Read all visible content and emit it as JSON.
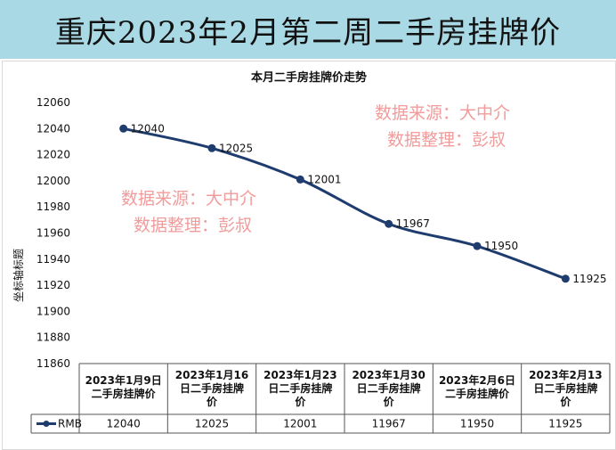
{
  "header": {
    "title": "重庆2023年2月第二周二手房挂牌价"
  },
  "chart_data": {
    "type": "line",
    "title": "本月二手房挂牌价走势",
    "xlabel": "",
    "ylabel": "坐标轴标题",
    "ylim": [
      11860,
      12060
    ],
    "yticks": [
      12060,
      12040,
      12020,
      12000,
      11980,
      11960,
      11940,
      11920,
      11900,
      11880,
      11860
    ],
    "categories": [
      [
        "2023年1月9日",
        "二手房挂牌价"
      ],
      [
        "2023年1月16",
        "日二手房挂牌",
        "价"
      ],
      [
        "2023年1月23",
        "日二手房挂牌",
        "价"
      ],
      [
        "2023年1月30",
        "日二手房挂牌",
        "价"
      ],
      [
        "2023年2月6日",
        "二手房挂牌价"
      ],
      [
        "2023年2月13",
        "日二手房挂牌",
        "价"
      ]
    ],
    "series": [
      {
        "name": "RMB",
        "values": [
          12040,
          12025,
          12001,
          11967,
          11950,
          11925
        ]
      }
    ],
    "legend": "data-table",
    "grid": false,
    "colors": {
      "line": "#1f3c6e",
      "banner": "#a9d9e4",
      "watermark": "#f08a8a"
    }
  },
  "watermarks": [
    {
      "line1": "数据来源：大中介",
      "line2": "数据整理：彭叔"
    },
    {
      "line1": "数据来源：大中介",
      "line2": "数据整理：彭叔"
    }
  ]
}
